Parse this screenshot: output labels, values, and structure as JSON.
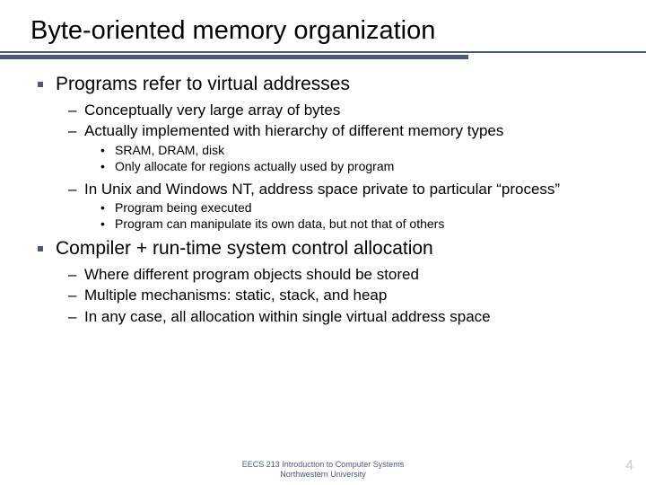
{
  "colors": {
    "accent": "#4a5a7a",
    "text": "#000000",
    "pagenum": "#c8ccd6",
    "background": "#ffffff"
  },
  "typography": {
    "title_fontsize": 29,
    "l1_fontsize": 21,
    "l2_fontsize": 17,
    "l3_fontsize": 14,
    "footer_fontsize": 9,
    "pagenum_fontsize": 16,
    "font_family": "Arial"
  },
  "title": "Byte-oriented memory organization",
  "bullets": {
    "b1": "Programs refer to virtual addresses",
    "b1_1": "Conceptually very large array of bytes",
    "b1_2": "Actually implemented with hierarchy of different memory types",
    "b1_2_1": "SRAM, DRAM, disk",
    "b1_2_2": "Only allocate for regions actually used by program",
    "b1_3": "In Unix and Windows NT, address space private to particular “process”",
    "b1_3_1": "Program being executed",
    "b1_3_2": "Program can manipulate its own data, but not that of others",
    "b2": "Compiler + run-time system control allocation",
    "b2_1": "Where different program objects should be stored",
    "b2_2": "Multiple mechanisms: static, stack, and heap",
    "b2_3": "In any case, all allocation within single virtual address space"
  },
  "footer": {
    "line1": "EECS 213 Introduction to Computer Systems",
    "line2": "Northwestern University"
  },
  "page_number": "4"
}
